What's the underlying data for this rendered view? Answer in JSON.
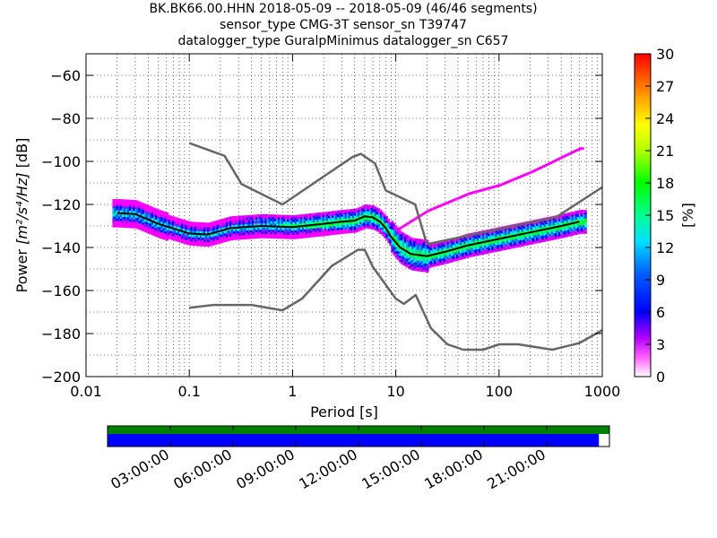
{
  "title_lines": [
    "BK.BK66.00.HHN   2018-05-09 -- 2018-05-09  (46/46 segments)",
    "sensor_type CMG-3T sensor_sn T39747",
    "datalogger_type GuralpMinimus datalogger_sn C657"
  ],
  "chart_data": {
    "type": "heatmap",
    "xlabel": "Period [s]",
    "ylabel_main": "Power ",
    "ylabel_math": "[m²/s⁴/Hz]",
    "ylabel_unit": " [dB]",
    "x_scale": "log",
    "xlim": [
      0.01,
      1000
    ],
    "ylim": [
      -200,
      -50
    ],
    "x_ticks": [
      0.01,
      0.1,
      1,
      10,
      100,
      1000
    ],
    "x_tick_labels": [
      "0.01",
      "0.1",
      "1",
      "10",
      "100",
      "1000"
    ],
    "y_ticks": [
      -60,
      -80,
      -100,
      -120,
      -140,
      -160,
      -180,
      -200
    ],
    "y_tick_labels": [
      "−60",
      "−80",
      "−100",
      "−120",
      "−140",
      "−160",
      "−180",
      "−200"
    ],
    "grid": true,
    "colorbar": {
      "label": "[%]",
      "range": [
        0,
        30
      ],
      "ticks": [
        0,
        3,
        6,
        9,
        12,
        15,
        18,
        21,
        24,
        27,
        30
      ],
      "tick_labels": [
        "0",
        "3",
        "6",
        "9",
        "12",
        "15",
        "18",
        "21",
        "24",
        "27",
        "30"
      ]
    },
    "noise_model_high": [
      [
        0.1,
        -91.5
      ],
      [
        0.22,
        -97.4
      ],
      [
        0.32,
        -110.5
      ],
      [
        0.8,
        -120
      ],
      [
        3.8,
        -98
      ],
      [
        4.6,
        -96.5
      ],
      [
        6.3,
        -101
      ],
      [
        8,
        -113.5
      ],
      [
        15.4,
        -120
      ],
      [
        20,
        -138.5
      ],
      [
        354.8,
        -126
      ],
      [
        1000,
        -112
      ]
    ],
    "noise_model_low": [
      [
        0.1,
        -168
      ],
      [
        0.17,
        -166.7
      ],
      [
        0.4,
        -166.7
      ],
      [
        0.8,
        -169.2
      ],
      [
        1.24,
        -163.7
      ],
      [
        2.4,
        -148.6
      ],
      [
        4.3,
        -141.1
      ],
      [
        5,
        -141.1
      ],
      [
        6,
        -149
      ],
      [
        10,
        -163.8
      ],
      [
        12,
        -166.2
      ],
      [
        15.6,
        -162.1
      ],
      [
        21.9,
        -177.5
      ],
      [
        31.6,
        -185
      ],
      [
        45,
        -187.5
      ],
      [
        70,
        -187.5
      ],
      [
        101,
        -185
      ],
      [
        154,
        -185
      ],
      [
        328,
        -187.5
      ],
      [
        600,
        -184.4
      ],
      [
        1000,
        -178.4
      ]
    ],
    "mode_curve": [
      [
        0.02,
        -124
      ],
      [
        0.03,
        -124.5
      ],
      [
        0.05,
        -129
      ],
      [
        0.1,
        -133.5
      ],
      [
        0.15,
        -134
      ],
      [
        0.25,
        -131
      ],
      [
        0.5,
        -130
      ],
      [
        1,
        -130.5
      ],
      [
        2,
        -129
      ],
      [
        3,
        -128
      ],
      [
        4,
        -127.5
      ],
      [
        5,
        -125.5
      ],
      [
        6,
        -126
      ],
      [
        7,
        -128
      ],
      [
        8,
        -131
      ],
      [
        9,
        -135
      ],
      [
        11,
        -140
      ],
      [
        14,
        -143
      ],
      [
        20,
        -144
      ],
      [
        30,
        -142
      ],
      [
        50,
        -139
      ],
      [
        100,
        -136
      ],
      [
        200,
        -133
      ],
      [
        400,
        -130
      ],
      [
        600,
        -128
      ]
    ],
    "spur_curve": [
      [
        10,
        -132
      ],
      [
        20,
        -123
      ],
      [
        50,
        -115
      ],
      [
        100,
        -111
      ],
      [
        200,
        -105
      ],
      [
        300,
        -101
      ],
      [
        400,
        -98
      ],
      [
        600,
        -94
      ]
    ],
    "time_axis": {
      "tick_labels": [
        "03:00:00",
        "06:00:00",
        "09:00:00",
        "12:00:00",
        "15:00:00",
        "18:00:00",
        "21:00:00"
      ],
      "tick_hours": [
        3,
        6,
        9,
        12,
        15,
        18,
        21
      ],
      "span_hours": 24,
      "data_coverage_fraction": 0.979,
      "colors": {
        "data": "#0000ff",
        "processed": "#008000"
      }
    }
  }
}
